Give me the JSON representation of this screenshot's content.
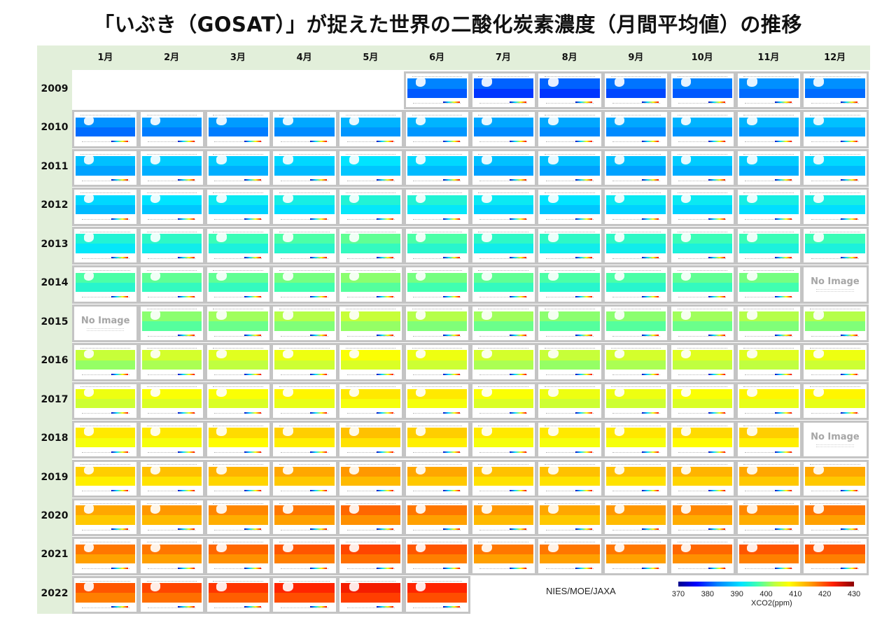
{
  "title": "「いぶき（GOSAT）」が捉えた世界の二酸化炭素濃度（月間平均値）の推移",
  "credit": "NIES/MOE/JAXA",
  "no_image_label": "No Image",
  "months": [
    "1月",
    "2月",
    "3月",
    "4月",
    "5月",
    "6月",
    "7月",
    "8月",
    "9月",
    "10月",
    "11月",
    "12月"
  ],
  "years": [
    "2009",
    "2010",
    "2011",
    "2012",
    "2013",
    "2014",
    "2015",
    "2016",
    "2017",
    "2018",
    "2019",
    "2020",
    "2021",
    "2022"
  ],
  "colorbar": {
    "label": "XCO2(ppm)",
    "ticks": [
      "370",
      "380",
      "390",
      "400",
      "410",
      "420",
      "430"
    ],
    "min": 370,
    "max": 430
  },
  "colors": {
    "panel_bg": "#e2efda",
    "cell_border": "#c4c4c4",
    "no_image_text": "#a6a6a6"
  },
  "chart_data": {
    "type": "heatmap",
    "title": "「いぶき（GOSAT）」が捉えた世界の二酸化炭素濃度（月間平均値）の推移",
    "xlabel": "月",
    "ylabel": "年",
    "colorbar_label": "XCO2(ppm)",
    "colorbar_range": [
      370,
      430
    ],
    "colorbar_ticks": [
      370,
      380,
      390,
      400,
      410,
      420,
      430
    ],
    "categories_x": [
      "1月",
      "2月",
      "3月",
      "4月",
      "5月",
      "6月",
      "7月",
      "8月",
      "9月",
      "10月",
      "11月",
      "12月"
    ],
    "categories_y": [
      "2009",
      "2010",
      "2011",
      "2012",
      "2013",
      "2014",
      "2015",
      "2016",
      "2017",
      "2018",
      "2019",
      "2020",
      "2021",
      "2022"
    ],
    "note": "Each cell is a global XCO2 map tile; values are approximate dominant ppm read from the colorbar. null = no tile (before launch data / after last month); 'No Image' = missing month.",
    "values": [
      [
        null,
        null,
        null,
        null,
        null,
        382,
        380,
        380,
        381,
        382,
        383,
        383
      ],
      [
        383,
        384,
        384,
        385,
        386,
        386,
        385,
        385,
        385,
        386,
        386,
        387
      ],
      [
        387,
        388,
        388,
        389,
        390,
        389,
        387,
        387,
        387,
        388,
        388,
        389
      ],
      [
        389,
        390,
        391,
        392,
        393,
        393,
        391,
        390,
        391,
        391,
        392,
        392
      ],
      [
        393,
        394,
        395,
        396,
        397,
        396,
        394,
        394,
        394,
        395,
        395,
        395
      ],
      [
        396,
        397,
        397,
        398,
        399,
        398,
        397,
        396,
        396,
        397,
        398,
        "No Image"
      ],
      [
        "No Image",
        399,
        400,
        401,
        402,
        401,
        400,
        399,
        399,
        400,
        401,
        401
      ],
      [
        402,
        403,
        404,
        405,
        406,
        405,
        403,
        402,
        403,
        404,
        404,
        405
      ],
      [
        405,
        406,
        406,
        407,
        408,
        408,
        406,
        405,
        405,
        406,
        407,
        407
      ],
      [
        408,
        408,
        409,
        410,
        411,
        410,
        408,
        408,
        408,
        409,
        410,
        "No Image"
      ],
      [
        410,
        411,
        412,
        413,
        414,
        413,
        411,
        411,
        411,
        412,
        413,
        413
      ],
      [
        413,
        414,
        415,
        416,
        417,
        416,
        414,
        413,
        414,
        415,
        415,
        416
      ],
      [
        416,
        416,
        417,
        418,
        419,
        418,
        416,
        416,
        416,
        417,
        418,
        418
      ],
      [
        418,
        419,
        420,
        421,
        422,
        421,
        null,
        null,
        null,
        null,
        null,
        null
      ]
    ]
  }
}
